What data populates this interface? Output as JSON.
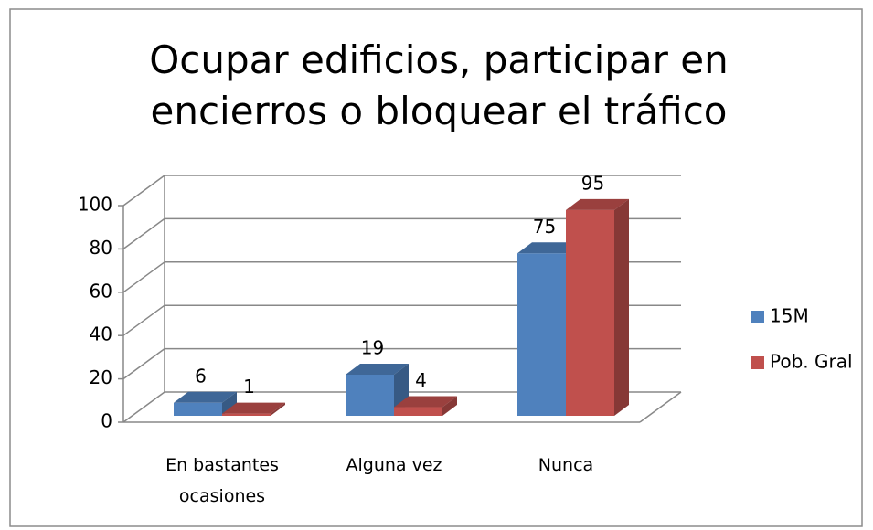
{
  "chart_data": {
    "type": "bar3d",
    "title": "Ocupar edificios, participar en encierros o bloquear el tráfico",
    "categories": [
      "En bastantes ocasiones",
      "Alguna vez",
      "Nunca"
    ],
    "series": [
      {
        "name": "15M",
        "color": "#4f81bd",
        "values": [
          6,
          19,
          75
        ]
      },
      {
        "name": "Pob. Gral",
        "color": "#c0504d",
        "values": [
          1,
          4,
          95
        ]
      }
    ],
    "ylim": [
      0,
      100
    ],
    "yticks": [
      0,
      20,
      40,
      60,
      80,
      100
    ],
    "grid": true,
    "legend": "right"
  }
}
